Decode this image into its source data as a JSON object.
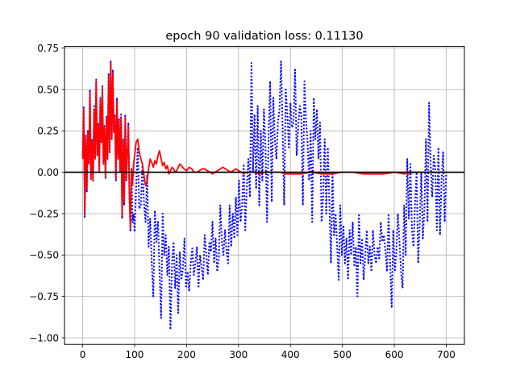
{
  "chart_data": {
    "type": "line",
    "title": "epoch 90  validation loss: 0.11130",
    "xlabel": "",
    "ylabel": "",
    "xlim": [
      -35,
      735
    ],
    "ylim": [
      -1.04,
      0.76
    ],
    "grid": true,
    "x_ticks": [
      0,
      100,
      200,
      300,
      400,
      500,
      600,
      700
    ],
    "x_tick_labels": [
      "0",
      "100",
      "200",
      "300",
      "400",
      "500",
      "600",
      "700"
    ],
    "y_ticks": [
      -1.0,
      -0.75,
      -0.5,
      -0.25,
      0.0,
      0.25,
      0.5,
      0.75
    ],
    "y_tick_labels": [
      "−1.00",
      "−0.75",
      "−0.50",
      "−0.25",
      "0.00",
      "0.25",
      "0.50",
      "0.75"
    ],
    "hline": {
      "y": 0.0,
      "color": "#000000"
    },
    "series": [
      {
        "color": "#0000ff",
        "style": "dotted",
        "x": [
          0,
          2,
          4,
          6,
          8,
          10,
          12,
          14,
          16,
          18,
          20,
          22,
          24,
          26,
          28,
          30,
          32,
          34,
          36,
          38,
          40,
          42,
          44,
          46,
          48,
          50,
          52,
          54,
          56,
          58,
          60,
          62,
          64,
          66,
          68,
          70,
          72,
          74,
          76,
          78,
          80,
          82,
          84,
          86,
          88,
          90,
          92,
          94,
          96,
          98,
          100,
          103,
          106,
          109,
          112,
          115,
          118,
          121,
          124,
          127,
          130,
          133,
          136,
          139,
          142,
          145,
          148,
          151,
          154,
          157,
          160,
          163,
          166,
          169,
          172,
          175,
          178,
          181,
          184,
          187,
          190,
          193,
          196,
          199,
          202,
          205,
          208,
          211,
          214,
          217,
          220,
          223,
          226,
          229,
          232,
          235,
          238,
          241,
          244,
          247,
          250,
          253,
          256,
          259,
          262,
          265,
          268,
          271,
          274,
          277,
          280,
          283,
          286,
          289,
          292,
          295,
          298,
          301,
          304,
          307,
          310,
          313,
          316,
          319,
          322,
          325,
          328,
          331,
          334,
          337,
          340,
          343,
          346,
          349,
          352,
          355,
          358,
          361,
          364,
          367,
          370,
          373,
          376,
          379,
          382,
          385,
          388,
          391,
          394,
          397,
          400,
          403,
          406,
          409,
          412,
          415,
          418,
          421,
          424,
          427,
          430,
          433,
          436,
          439,
          442,
          445,
          448,
          451,
          454,
          457,
          460,
          463,
          466,
          469,
          472,
          475,
          478,
          481,
          484,
          487,
          490,
          493,
          496,
          499,
          502,
          505,
          508,
          511,
          514,
          517,
          520,
          523,
          526,
          529,
          532,
          535,
          538,
          541,
          544,
          547,
          550,
          553,
          556,
          559,
          562,
          565,
          568,
          571,
          574,
          577,
          580,
          583,
          586,
          589,
          592,
          595,
          598,
          601,
          604,
          607,
          610,
          613,
          616,
          619,
          622,
          625,
          628,
          631,
          634,
          637,
          640,
          643,
          646,
          649,
          652,
          655,
          658,
          661,
          664,
          667,
          670,
          673,
          676,
          679,
          682,
          685,
          688,
          691,
          694,
          697,
          700
        ],
        "y": [
          0.1,
          0.4,
          -0.27,
          0.23,
          -0.12,
          0.25,
          0.05,
          0.5,
          -0.05,
          0.2,
          -0.06,
          0.4,
          0.08,
          0.56,
          0.1,
          0.3,
          0.0,
          0.45,
          0.18,
          0.52,
          0.05,
          0.28,
          -0.04,
          0.34,
          0.08,
          0.6,
          0.12,
          0.67,
          0.2,
          0.62,
          0.25,
          0.35,
          -0.05,
          0.45,
          0.08,
          0.32,
          0.0,
          0.35,
          -0.28,
          0.2,
          -0.2,
          0.35,
          -0.05,
          0.12,
          0.3,
          -0.16,
          -0.36,
          0.02,
          -0.3,
          -0.25,
          -0.36,
          -0.1,
          0.15,
          -0.22,
          -0.2,
          0.04,
          -0.18,
          -0.3,
          -0.02,
          -0.45,
          -0.28,
          -0.55,
          -0.75,
          -0.23,
          -0.42,
          -0.3,
          -0.6,
          -0.88,
          -0.25,
          -0.5,
          -0.38,
          -0.62,
          -0.45,
          -0.95,
          -0.55,
          -0.42,
          -0.7,
          -0.5,
          -0.85,
          -0.48,
          -0.65,
          -0.58,
          -0.4,
          -0.7,
          -0.6,
          -0.72,
          -0.55,
          -0.46,
          -0.62,
          -0.55,
          -0.45,
          -0.7,
          -0.5,
          -0.57,
          -0.65,
          -0.38,
          -0.5,
          -0.62,
          -0.42,
          -0.48,
          -0.3,
          -0.55,
          -0.4,
          -0.6,
          -0.52,
          -0.2,
          -0.42,
          -0.5,
          -0.35,
          -0.48,
          -0.55,
          -0.2,
          -0.45,
          -0.25,
          -0.4,
          -0.15,
          -0.38,
          -0.05,
          -0.3,
          -0.2,
          0.05,
          -0.35,
          -0.1,
          0.08,
          -0.15,
          0.66,
          0.0,
          0.35,
          -0.1,
          0.4,
          -0.2,
          0.25,
          -0.05,
          0.38,
          0.15,
          -0.3,
          0.22,
          0.55,
          -0.18,
          0.45,
          0.2,
          0.08,
          0.3,
          0.38,
          0.67,
          0.25,
          -0.2,
          0.5,
          0.35,
          0.15,
          0.42,
          0.27,
          0.3,
          0.62,
          0.1,
          0.28,
          0.4,
          0.35,
          -0.2,
          0.55,
          0.32,
          0.18,
          -0.05,
          0.25,
          -0.3,
          0.45,
          0.2,
          0.38,
          0.08,
          0.3,
          -0.3,
          -0.15,
          0.2,
          -0.25,
          0.15,
          -0.18,
          -0.55,
          0.0,
          -0.38,
          -0.25,
          -0.45,
          -0.65,
          -0.2,
          -0.5,
          -0.32,
          -0.55,
          -0.4,
          -0.65,
          -0.35,
          -0.5,
          -0.3,
          -0.57,
          -0.45,
          -0.75,
          -0.25,
          -0.55,
          -0.4,
          -0.65,
          -0.5,
          -0.35,
          -0.55,
          -0.45,
          -0.6,
          -0.35,
          -0.5,
          -0.55,
          -0.45,
          -0.52,
          -0.3,
          -0.42,
          -0.38,
          -0.48,
          -0.6,
          -0.25,
          -0.55,
          -0.82,
          -0.35,
          -0.6,
          -0.48,
          -0.25,
          -0.42,
          -0.6,
          -0.7,
          -0.2,
          -0.5,
          0.08,
          -0.28,
          0.05,
          -0.35,
          -0.45,
          -0.18,
          0.0,
          -0.55,
          -0.3,
          0.0,
          -0.4,
          -0.22,
          0.2,
          -0.3,
          0.42,
          0.05,
          -0.15,
          0.1,
          0.02,
          -0.35,
          0.15,
          -0.38,
          -0.05,
          0.12,
          -0.3,
          0.0
        ]
      },
      {
        "color": "#ff0000",
        "style": "solid",
        "x": [
          0,
          2,
          4,
          6,
          8,
          10,
          12,
          14,
          16,
          18,
          20,
          22,
          24,
          26,
          28,
          30,
          32,
          34,
          36,
          38,
          40,
          42,
          44,
          46,
          48,
          50,
          52,
          54,
          56,
          58,
          60,
          62,
          64,
          66,
          68,
          70,
          72,
          74,
          76,
          78,
          80,
          82,
          84,
          86,
          88,
          90,
          92,
          94,
          96,
          98,
          100,
          103,
          106,
          109,
          112,
          115,
          118,
          121,
          124,
          127,
          130,
          133,
          136,
          139,
          142,
          145,
          148,
          151,
          154,
          157,
          160,
          163,
          166,
          169,
          172,
          175,
          178,
          181,
          184,
          187,
          190,
          195,
          200,
          205,
          210,
          215,
          220,
          225,
          230,
          235,
          240,
          245,
          250,
          255,
          260,
          265,
          270,
          275,
          280,
          285,
          290,
          295,
          300,
          305,
          310,
          315,
          320,
          330,
          340,
          350,
          360,
          370,
          380,
          390,
          400,
          420,
          440,
          460,
          480,
          500,
          520,
          540,
          560,
          580,
          600,
          620,
          640,
          660,
          680,
          700
        ],
        "y": [
          0.08,
          0.38,
          -0.25,
          0.22,
          -0.1,
          0.24,
          0.05,
          0.48,
          -0.04,
          0.19,
          -0.05,
          0.38,
          0.08,
          0.55,
          0.1,
          0.29,
          0.0,
          0.44,
          0.18,
          0.5,
          0.05,
          0.27,
          -0.03,
          0.33,
          0.08,
          0.58,
          0.12,
          0.66,
          0.2,
          0.6,
          0.24,
          0.34,
          -0.04,
          0.43,
          0.08,
          0.31,
          0.0,
          0.33,
          -0.26,
          0.19,
          -0.18,
          0.33,
          -0.04,
          0.11,
          0.28,
          -0.14,
          -0.34,
          0.02,
          -0.08,
          0.05,
          0.1,
          0.18,
          0.2,
          0.12,
          0.08,
          0.05,
          -0.02,
          -0.08,
          -0.06,
          0.02,
          0.08,
          0.06,
          0.03,
          0.07,
          0.05,
          0.1,
          0.13,
          0.08,
          0.04,
          0.06,
          0.02,
          0.04,
          -0.01,
          0.01,
          0.03,
          0.02,
          0.0,
          0.01,
          0.03,
          0.05,
          0.04,
          0.02,
          0.01,
          0.03,
          0.02,
          0.0,
          0.0,
          0.01,
          0.02,
          0.02,
          0.01,
          0.0,
          -0.01,
          0.0,
          0.01,
          0.02,
          0.03,
          0.02,
          0.01,
          0.0,
          0.01,
          0.02,
          0.01,
          0.0,
          -0.01,
          0.0,
          0.0,
          0.0,
          -0.01,
          0.0,
          0.0,
          0.0,
          0.0,
          -0.01,
          -0.01,
          -0.01,
          0.0,
          -0.01,
          -0.01,
          0.0,
          0.0,
          -0.01,
          -0.01,
          -0.01,
          0.0,
          -0.01,
          0.0,
          0.0,
          0.0,
          0.0
        ]
      }
    ]
  }
}
